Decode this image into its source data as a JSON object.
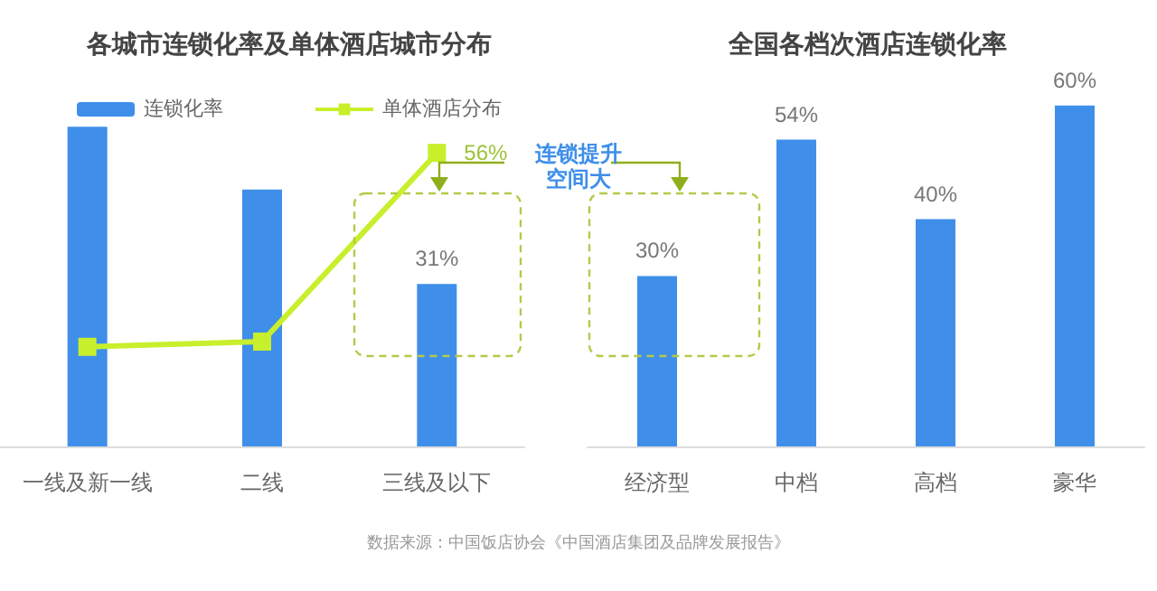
{
  "chart_data": [
    {
      "type": "bar",
      "title": "各城市连锁化率及单体酒店城市分布",
      "categories": [
        "一线及新一线",
        "二线",
        "三线及以下"
      ],
      "series": [
        {
          "name": "连锁化率",
          "color": "#3f8fea",
          "values": [
            61,
            49,
            31
          ],
          "value_labels": [
            null,
            null,
            "31%"
          ]
        },
        {
          "name": "单体酒店分布",
          "type": "line",
          "color": "#c8ef2c",
          "values": [
            19,
            20,
            56
          ],
          "value_labels": [
            null,
            null,
            "56%"
          ]
        }
      ],
      "legend": "top",
      "marker": "square",
      "line_style": "solid",
      "annotations": [
        "连锁提升空间大"
      ]
    },
    {
      "type": "bar",
      "title": "全国各档次酒店连锁化率",
      "categories": [
        "经济型",
        "中档",
        "高档",
        "豪华"
      ],
      "series": [
        {
          "color": "#3f8fea",
          "values": [
            30,
            54,
            40,
            60
          ],
          "value_labels": [
            "30%",
            "54%",
            "40%",
            "60%"
          ]
        }
      ],
      "legend": false,
      "annotations": [
        "数据来源：中国饭店协会《中国酒店集团及品牌发展报告》"
      ]
    }
  ]
}
